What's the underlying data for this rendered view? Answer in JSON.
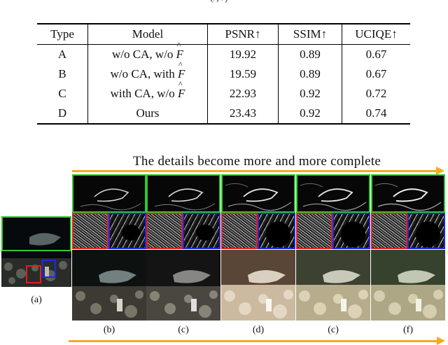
{
  "clipped_caption": "(/, /)",
  "table": {
    "headers": [
      "Type",
      "Model",
      "PSNR↑",
      "SSIM↑",
      "UCIQE↑"
    ],
    "rows": [
      {
        "type": "A",
        "model_prefix": "w/o CA, w/o ",
        "model_symbol": "F",
        "psnr": "19.92",
        "ssim": "0.89",
        "uciqe": "0.67"
      },
      {
        "type": "B",
        "model_prefix": "w/o CA, with ",
        "model_symbol": "F",
        "psnr": "19.59",
        "ssim": "0.89",
        "uciqe": "0.67"
      },
      {
        "type": "C",
        "model_prefix": "with CA, w/o ",
        "model_symbol": "F",
        "psnr": "22.93",
        "ssim": "0.92",
        "uciqe": "0.72"
      },
      {
        "type": "D",
        "model_prefix": "Ours",
        "model_symbol": "",
        "psnr": "23.43",
        "ssim": "0.92",
        "uciqe": "0.74"
      }
    ]
  },
  "figure": {
    "caption": "The details become more and more complete",
    "arrow_color": "#f3ab1f",
    "box_colors": {
      "green": "#2fc82f",
      "red": "#e02020",
      "blue": "#1a2be0"
    },
    "labels": {
      "a": "(a)",
      "b": "(b)",
      "c1": "(c)",
      "d": "(d)",
      "c2": "(c)",
      "f": "(f)"
    }
  }
}
